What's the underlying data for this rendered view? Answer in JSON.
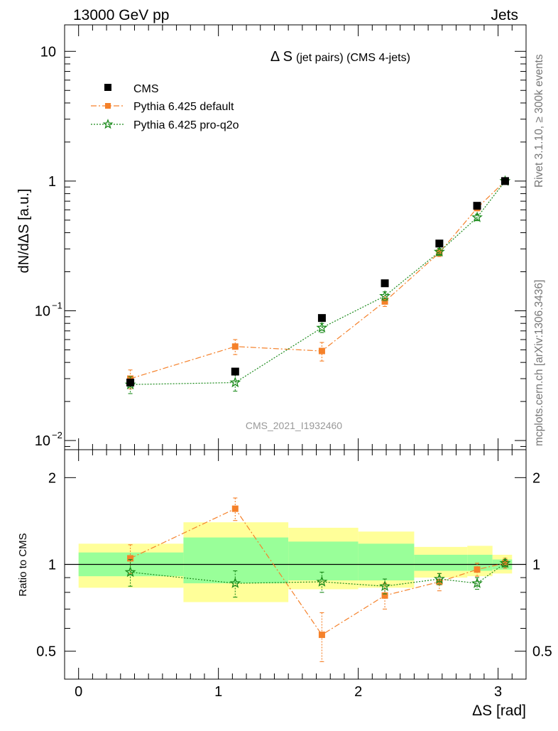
{
  "header": {
    "left": "13000 GeV pp",
    "right": "Jets"
  },
  "side_labels": {
    "rivet": "Rivet 3.1.10, ≥ 300k events",
    "mcplots": "mcplots.cern.ch [arXiv:1306.3436]"
  },
  "chart_data": [
    {
      "type": "scatter",
      "title": "Δ S",
      "title_suffix": "(jet pairs) (CMS 4-jets)",
      "watermark": "CMS_2021_I1932460",
      "xlabel": "",
      "ylabel": "dN/dΔS [a.u.]",
      "yscale": "log",
      "ylim": [
        0.0085,
        16
      ],
      "xlim": [
        -0.1,
        3.2
      ],
      "y_ticks": [
        {
          "value": 10,
          "label": "10"
        },
        {
          "value": 1,
          "label": "1"
        },
        {
          "value": 0.1,
          "label": "10",
          "sup": "−1"
        },
        {
          "value": 0.01,
          "label": "10",
          "sup": "−2"
        }
      ],
      "legend": "top-left",
      "series": [
        {
          "name": "CMS",
          "color": "#000000",
          "marker": "square",
          "x": [
            0.37,
            1.12,
            1.74,
            2.19,
            2.58,
            2.85,
            3.05
          ],
          "y": [
            0.028,
            0.034,
            0.088,
            0.163,
            0.33,
            0.645,
            1.0
          ]
        },
        {
          "name": "Pythia 6.425 default",
          "color": "#f5812a",
          "marker": "square",
          "line": "dashdot",
          "x": [
            0.37,
            1.12,
            1.74,
            2.19,
            2.58,
            2.85,
            3.05
          ],
          "y": [
            0.03,
            0.053,
            0.049,
            0.118,
            0.28,
            0.62,
            1.0
          ],
          "yerr": [
            0.005,
            0.007,
            0.008,
            0.01,
            0.018,
            0.03,
            0.01
          ]
        },
        {
          "name": "Pythia 6.425 pro-q2o",
          "color": "#1a8a1a",
          "marker": "star",
          "line": "dotted",
          "x": [
            0.37,
            1.12,
            1.74,
            2.19,
            2.58,
            2.85,
            3.05
          ],
          "y": [
            0.027,
            0.028,
            0.074,
            0.13,
            0.285,
            0.525,
            1.0
          ],
          "yerr": [
            0.004,
            0.004,
            0.006,
            0.01,
            0.018,
            0.03,
            0.01
          ]
        }
      ]
    },
    {
      "type": "scatter",
      "xlabel": "ΔS [rad]",
      "ylabel": "Ratio to CMS",
      "yscale": "log",
      "ylim": [
        0.4,
        2.5
      ],
      "xlim": [
        -0.1,
        3.2
      ],
      "x_ticks": [
        0,
        1,
        2,
        3
      ],
      "y_ticks": [
        {
          "value": 2,
          "label": "2"
        },
        {
          "value": 1,
          "label": "1"
        },
        {
          "value": 0.5,
          "label": "0.5"
        }
      ],
      "reference": 1,
      "bands": [
        {
          "x0": 0.0,
          "x1": 0.75,
          "outer": [
            0.83,
            1.18
          ],
          "inner": [
            0.91,
            1.1
          ]
        },
        {
          "x0": 0.75,
          "x1": 1.5,
          "outer": [
            0.74,
            1.4
          ],
          "inner": [
            0.86,
            1.24
          ]
        },
        {
          "x0": 1.5,
          "x1": 2.0,
          "outer": [
            0.82,
            1.34
          ],
          "inner": [
            0.88,
            1.2
          ]
        },
        {
          "x0": 2.0,
          "x1": 2.4,
          "outer": [
            0.83,
            1.3
          ],
          "inner": [
            0.88,
            1.18
          ]
        },
        {
          "x0": 2.4,
          "x1": 2.78,
          "outer": [
            0.9,
            1.15
          ],
          "inner": [
            0.95,
            1.08
          ]
        },
        {
          "x0": 2.78,
          "x1": 2.96,
          "outer": [
            0.91,
            1.16
          ],
          "inner": [
            0.95,
            1.08
          ]
        },
        {
          "x0": 2.96,
          "x1": 3.1,
          "outer": [
            0.93,
            1.08
          ],
          "inner": [
            0.96,
            1.04
          ]
        }
      ],
      "band_colors": {
        "outer": "#ffff99",
        "inner": "#99ff99"
      },
      "series": [
        {
          "name": "Pythia 6.425 default",
          "color": "#f5812a",
          "marker": "square",
          "line": "dashdot",
          "x": [
            0.37,
            1.12,
            1.74,
            2.19,
            2.58,
            2.85,
            3.05
          ],
          "y": [
            1.05,
            1.56,
            0.57,
            0.78,
            0.87,
            0.96,
            1.01
          ],
          "yerr": [
            0.12,
            0.14,
            0.11,
            0.08,
            0.06,
            0.05,
            0.04
          ]
        },
        {
          "name": "Pythia 6.425 pro-q2o",
          "color": "#1a8a1a",
          "marker": "star",
          "line": "dotted",
          "x": [
            0.37,
            1.12,
            1.74,
            2.19,
            2.58,
            2.85,
            3.05
          ],
          "y": [
            0.94,
            0.86,
            0.87,
            0.84,
            0.89,
            0.86,
            1.01
          ],
          "yerr": [
            0.1,
            0.09,
            0.07,
            0.05,
            0.04,
            0.04,
            0.03
          ]
        }
      ]
    }
  ]
}
